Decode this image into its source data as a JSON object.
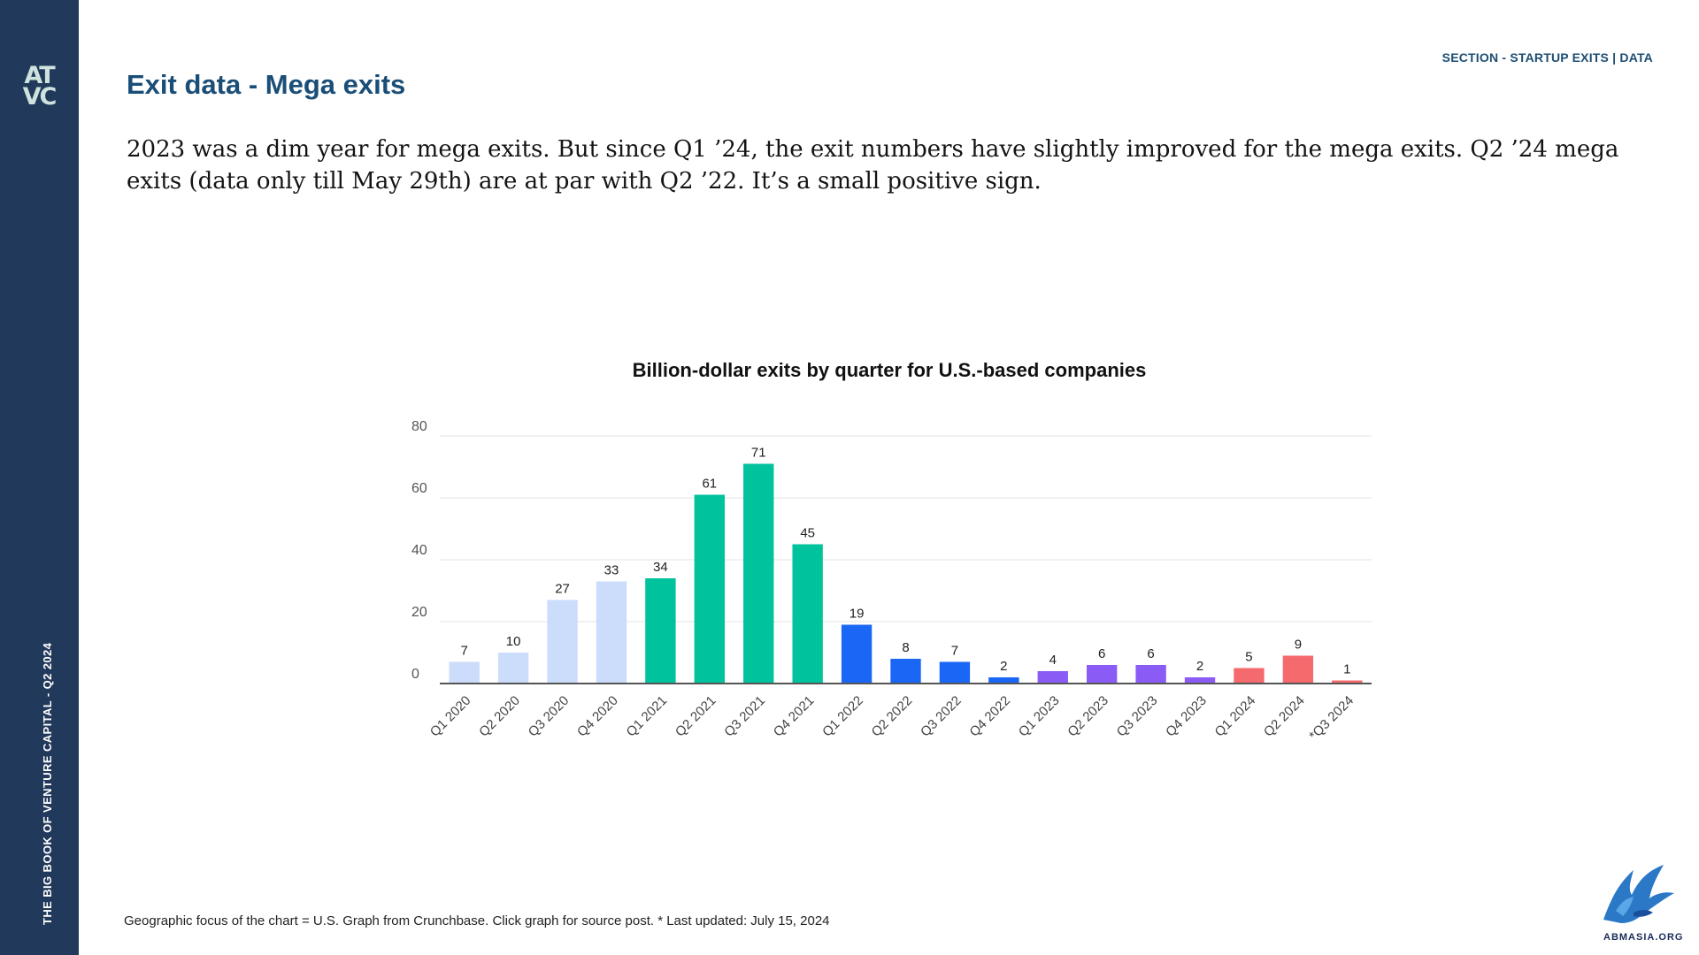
{
  "sidebar": {
    "logo_lines": [
      "AT",
      "VC"
    ],
    "vertical_title": "THE BIG BOOK OF VENTURE CAPITAL - Q2 2024"
  },
  "header": {
    "section_label": "SECTION - STARTUP EXITS | DATA",
    "title": "Exit data - Mega exits"
  },
  "intro_text": "2023 was a dim year for mega exits. But since Q1 ’24, the exit numbers have slightly improved for the mega exits. Q2 ’24 mega exits (data only till May 29th) are at par with Q2 ’22. It’s a small positive sign.",
  "chart_data": {
    "type": "bar",
    "title": "Billion-dollar exits by quarter for U.S.-based companies",
    "xlabel": "",
    "ylabel": "",
    "ylim": [
      0,
      80
    ],
    "yticks": [
      0,
      20,
      40,
      60,
      80
    ],
    "grid": true,
    "categories": [
      "Q1 2020",
      "Q2 2020",
      "Q3 2020",
      "Q4 2020",
      "Q1 2021",
      "Q2 2021",
      "Q3 2021",
      "Q4 2021",
      "Q1 2022",
      "Q2 2022",
      "Q3 2022",
      "Q4 2022",
      "Q1 2023",
      "Q2 2023",
      "Q3 2023",
      "Q4 2023",
      "Q1 2024",
      "Q2 2024",
      "*Q3 2024"
    ],
    "values": [
      7,
      10,
      27,
      33,
      34,
      61,
      71,
      45,
      19,
      8,
      7,
      2,
      4,
      6,
      6,
      2,
      5,
      9,
      1
    ],
    "colors": [
      "#ccdcfb",
      "#ccdcfb",
      "#ccdcfb",
      "#ccdcfb",
      "#00c29c",
      "#00c29c",
      "#00c29c",
      "#00c29c",
      "#1a66f5",
      "#1a66f5",
      "#1a66f5",
      "#1a66f5",
      "#8a5cf5",
      "#8a5cf5",
      "#8a5cf5",
      "#8a5cf5",
      "#f46a6d",
      "#f46a6d",
      "#f46a6d"
    ]
  },
  "footnote": "Geographic focus of the chart = U.S. Graph from Crunchbase. Click graph for source post. * Last updated: July 15, 2024",
  "brand": {
    "text": "ABMASIA.ORG",
    "icon": "eagle-icon"
  }
}
